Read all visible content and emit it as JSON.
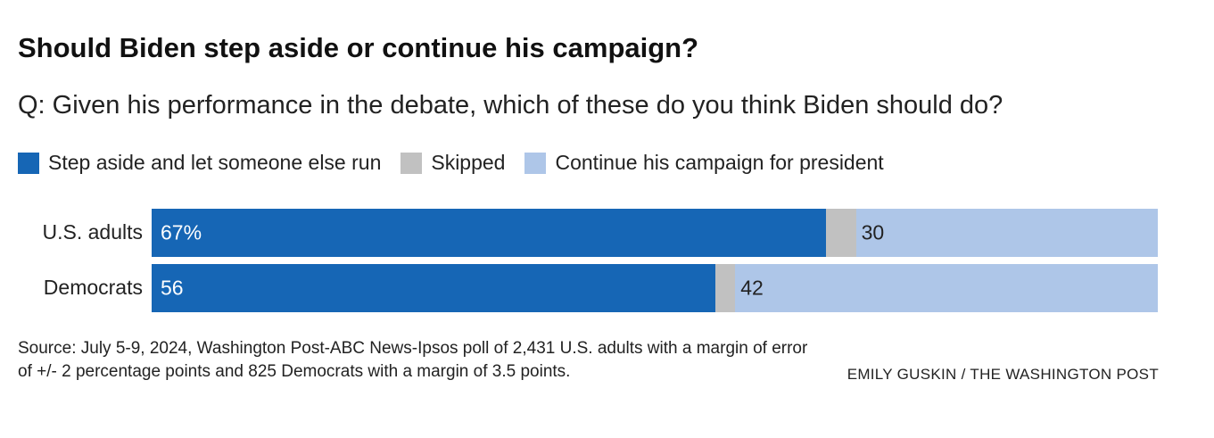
{
  "colors": {
    "step_aside": "#1666b5",
    "skipped": "#c1c1c1",
    "continue": "#aec6e8"
  },
  "chart_data": {
    "type": "bar",
    "orientation": "horizontal",
    "stacked": true,
    "title": "Should Biden step aside or continue his campaign?",
    "subtitle": "Q: Given his performance in the debate, which of these do you think Biden should do?",
    "legend_position": "top-left",
    "grid": false,
    "xlim": [
      0,
      100
    ],
    "categories": [
      "U.S. adults",
      "Democrats"
    ],
    "series": [
      {
        "name": "Step aside and let someone else run",
        "values": [
          67,
          56
        ],
        "labels": [
          "67%",
          "56"
        ]
      },
      {
        "name": "Skipped",
        "values": [
          3,
          2
        ],
        "labels": [
          "",
          ""
        ]
      },
      {
        "name": "Continue his campaign for president",
        "values": [
          30,
          42
        ],
        "labels": [
          "30",
          "42"
        ]
      }
    ]
  },
  "footer": {
    "source": "Source: July 5-9, 2024, Washington Post-ABC News-Ipsos poll of 2,431 U.S. adults with a margin of error of +/- 2 percentage points and 825 Democrats with a margin of 3.5 points.",
    "credit": "EMILY GUSKIN / THE WASHINGTON POST"
  }
}
